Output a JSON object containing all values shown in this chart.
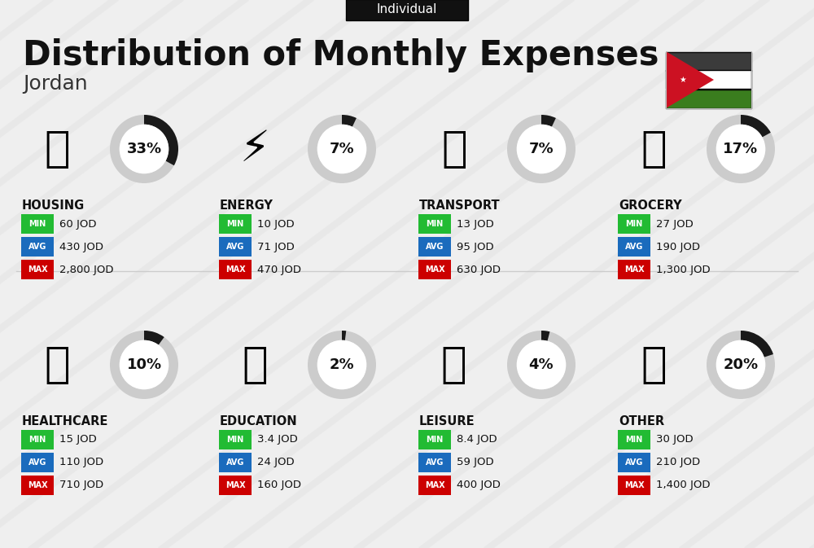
{
  "title": "Distribution of Monthly Expenses",
  "subtitle": "Jordan",
  "tag": "Individual",
  "bg_color": "#efefef",
  "categories": [
    {
      "name": "HOUSING",
      "pct": 33,
      "min": "60 JOD",
      "avg": "430 JOD",
      "max": "2,800 JOD",
      "row": 0,
      "col": 0
    },
    {
      "name": "ENERGY",
      "pct": 7,
      "min": "10 JOD",
      "avg": "71 JOD",
      "max": "470 JOD",
      "row": 0,
      "col": 1
    },
    {
      "name": "TRANSPORT",
      "pct": 7,
      "min": "13 JOD",
      "avg": "95 JOD",
      "max": "630 JOD",
      "row": 0,
      "col": 2
    },
    {
      "name": "GROCERY",
      "pct": 17,
      "min": "27 JOD",
      "avg": "190 JOD",
      "max": "1,300 JOD",
      "row": 0,
      "col": 3
    },
    {
      "name": "HEALTHCARE",
      "pct": 10,
      "min": "15 JOD",
      "avg": "110 JOD",
      "max": "710 JOD",
      "row": 1,
      "col": 0
    },
    {
      "name": "EDUCATION",
      "pct": 2,
      "min": "3.4 JOD",
      "avg": "24 JOD",
      "max": "160 JOD",
      "row": 1,
      "col": 1
    },
    {
      "name": "LEISURE",
      "pct": 4,
      "min": "8.4 JOD",
      "avg": "59 JOD",
      "max": "400 JOD",
      "row": 1,
      "col": 2
    },
    {
      "name": "OTHER",
      "pct": 20,
      "min": "30 JOD",
      "avg": "210 JOD",
      "max": "1,400 JOD",
      "row": 1,
      "col": 3
    }
  ],
  "min_color": "#22bb33",
  "avg_color": "#1a6bbd",
  "max_color": "#cc0000",
  "arc_bg_color": "#cccccc",
  "arc_fg_color": "#1a1a1a",
  "stripe_color": "#e4e4e4",
  "flag_black": "#3b3b3b",
  "flag_white": "#ffffff",
  "flag_green": "#3a7d1e",
  "flag_red": "#cc1122"
}
